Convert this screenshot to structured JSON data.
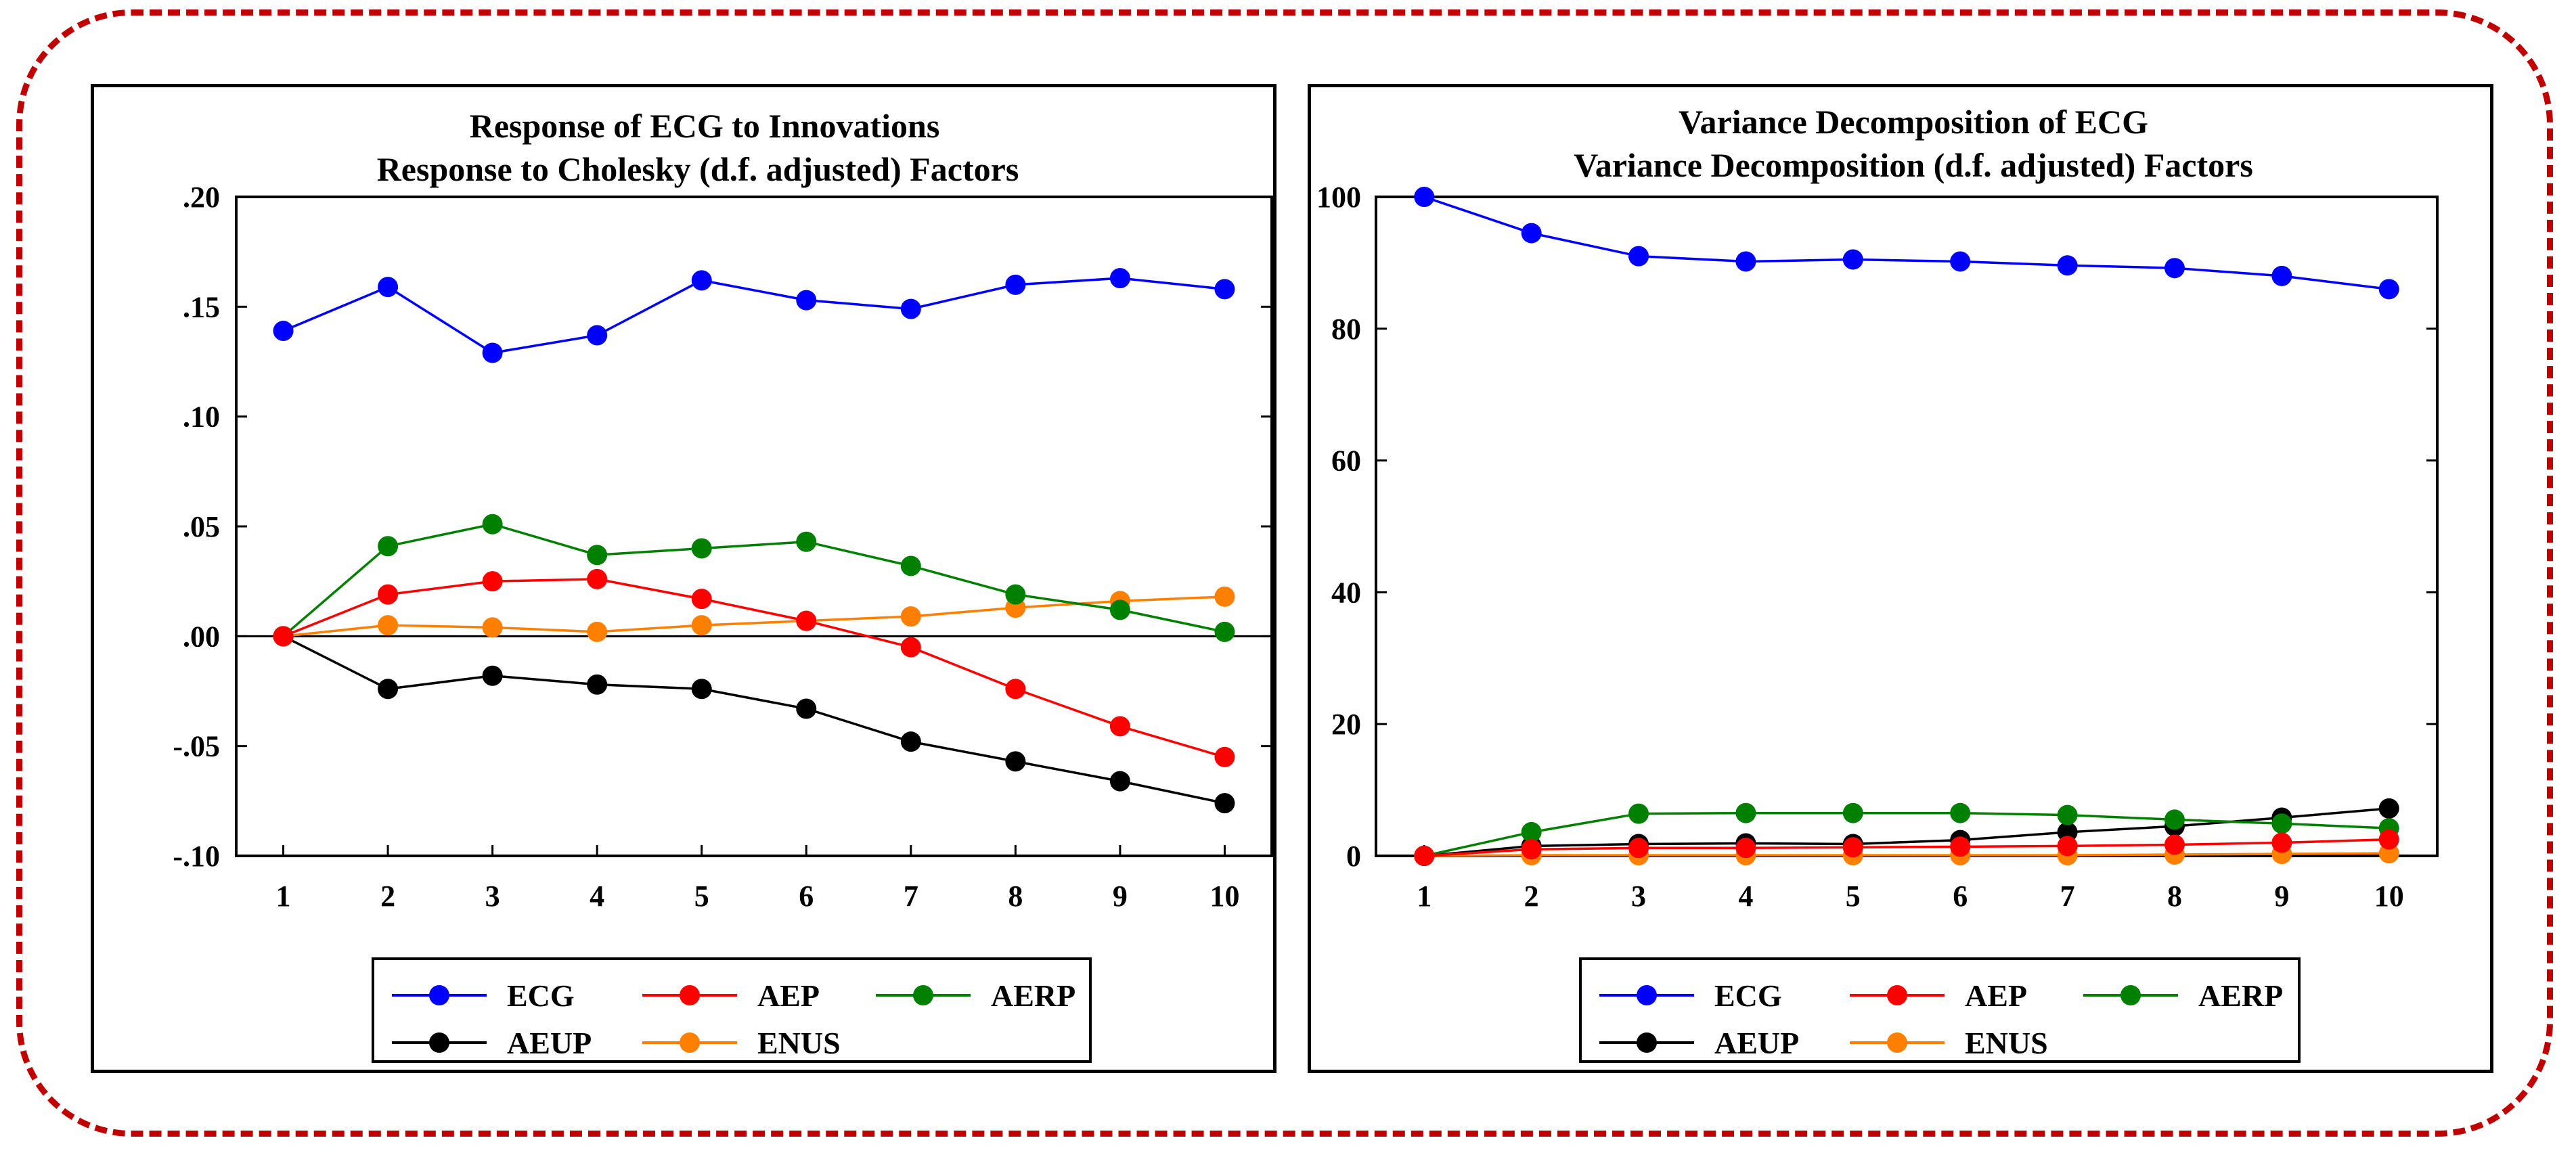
{
  "chart_data": [
    {
      "type": "line",
      "title": "Response of ECG to Innovations",
      "subtitle": "Response to Cholesky (d.f. adjusted) Factors",
      "xlabel": "",
      "ylabel": "",
      "x": [
        1,
        2,
        3,
        4,
        5,
        6,
        7,
        8,
        9,
        10
      ],
      "xlim": [
        0.55,
        10.45
      ],
      "ylim": [
        -0.1,
        0.2
      ],
      "yticks": [
        -0.1,
        -0.05,
        0.0,
        0.05,
        0.1,
        0.15,
        0.2
      ],
      "ytick_labels": [
        "-.10",
        "-.05",
        ".00",
        ".05",
        ".10",
        ".15",
        ".20"
      ],
      "zero_line": true,
      "grid": false,
      "legend_position": "bottom",
      "series": [
        {
          "name": "ECG",
          "color": "#0000ff",
          "values": [
            0.139,
            0.159,
            0.129,
            0.137,
            0.162,
            0.153,
            0.149,
            0.16,
            0.163,
            0.158
          ]
        },
        {
          "name": "AEP",
          "color": "#ff0000",
          "values": [
            0.0,
            0.019,
            0.025,
            0.026,
            0.017,
            0.007,
            -0.005,
            -0.024,
            -0.041,
            -0.055
          ]
        },
        {
          "name": "AERP",
          "color": "#008000",
          "values": [
            0.0,
            0.041,
            0.051,
            0.037,
            0.04,
            0.043,
            0.032,
            0.019,
            0.012,
            0.002
          ]
        },
        {
          "name": "AEUP",
          "color": "#000000",
          "values": [
            0.0,
            -0.024,
            -0.018,
            -0.022,
            -0.024,
            -0.033,
            -0.048,
            -0.057,
            -0.066,
            -0.076
          ]
        },
        {
          "name": "ENUS",
          "color": "#ff8000",
          "values": [
            0.0,
            0.005,
            0.004,
            0.002,
            0.005,
            0.007,
            0.009,
            0.013,
            0.016,
            0.018
          ]
        }
      ]
    },
    {
      "type": "line",
      "title": "Variance Decomposition of ECG",
      "subtitle": "Variance Decomposition (d.f. adjusted) Factors",
      "xlabel": "",
      "ylabel": "",
      "x": [
        1,
        2,
        3,
        4,
        5,
        6,
        7,
        8,
        9,
        10
      ],
      "xlim": [
        0.55,
        10.45
      ],
      "ylim": [
        0,
        100
      ],
      "yticks": [
        0,
        20,
        40,
        60,
        80,
        100
      ],
      "ytick_labels": [
        "0",
        "20",
        "40",
        "60",
        "80",
        "100"
      ],
      "zero_line": false,
      "grid": false,
      "legend_position": "bottom",
      "series": [
        {
          "name": "ECG",
          "color": "#0000ff",
          "values": [
            100.0,
            94.5,
            91.0,
            90.2,
            90.5,
            90.2,
            89.6,
            89.2,
            88.0,
            86.0
          ]
        },
        {
          "name": "AEP",
          "color": "#ff0000",
          "values": [
            0.0,
            1.0,
            1.2,
            1.2,
            1.3,
            1.4,
            1.5,
            1.7,
            2.0,
            2.5
          ]
        },
        {
          "name": "AERP",
          "color": "#008000",
          "values": [
            0.0,
            3.6,
            6.4,
            6.5,
            6.5,
            6.5,
            6.2,
            5.5,
            4.9,
            4.2
          ]
        },
        {
          "name": "AEUP",
          "color": "#000000",
          "values": [
            0.0,
            1.5,
            1.8,
            1.9,
            1.8,
            2.4,
            3.6,
            4.5,
            5.8,
            7.2
          ]
        },
        {
          "name": "ENUS",
          "color": "#ff8000",
          "values": [
            0.0,
            0.1,
            0.1,
            0.1,
            0.1,
            0.1,
            0.1,
            0.2,
            0.3,
            0.4
          ]
        }
      ]
    }
  ]
}
